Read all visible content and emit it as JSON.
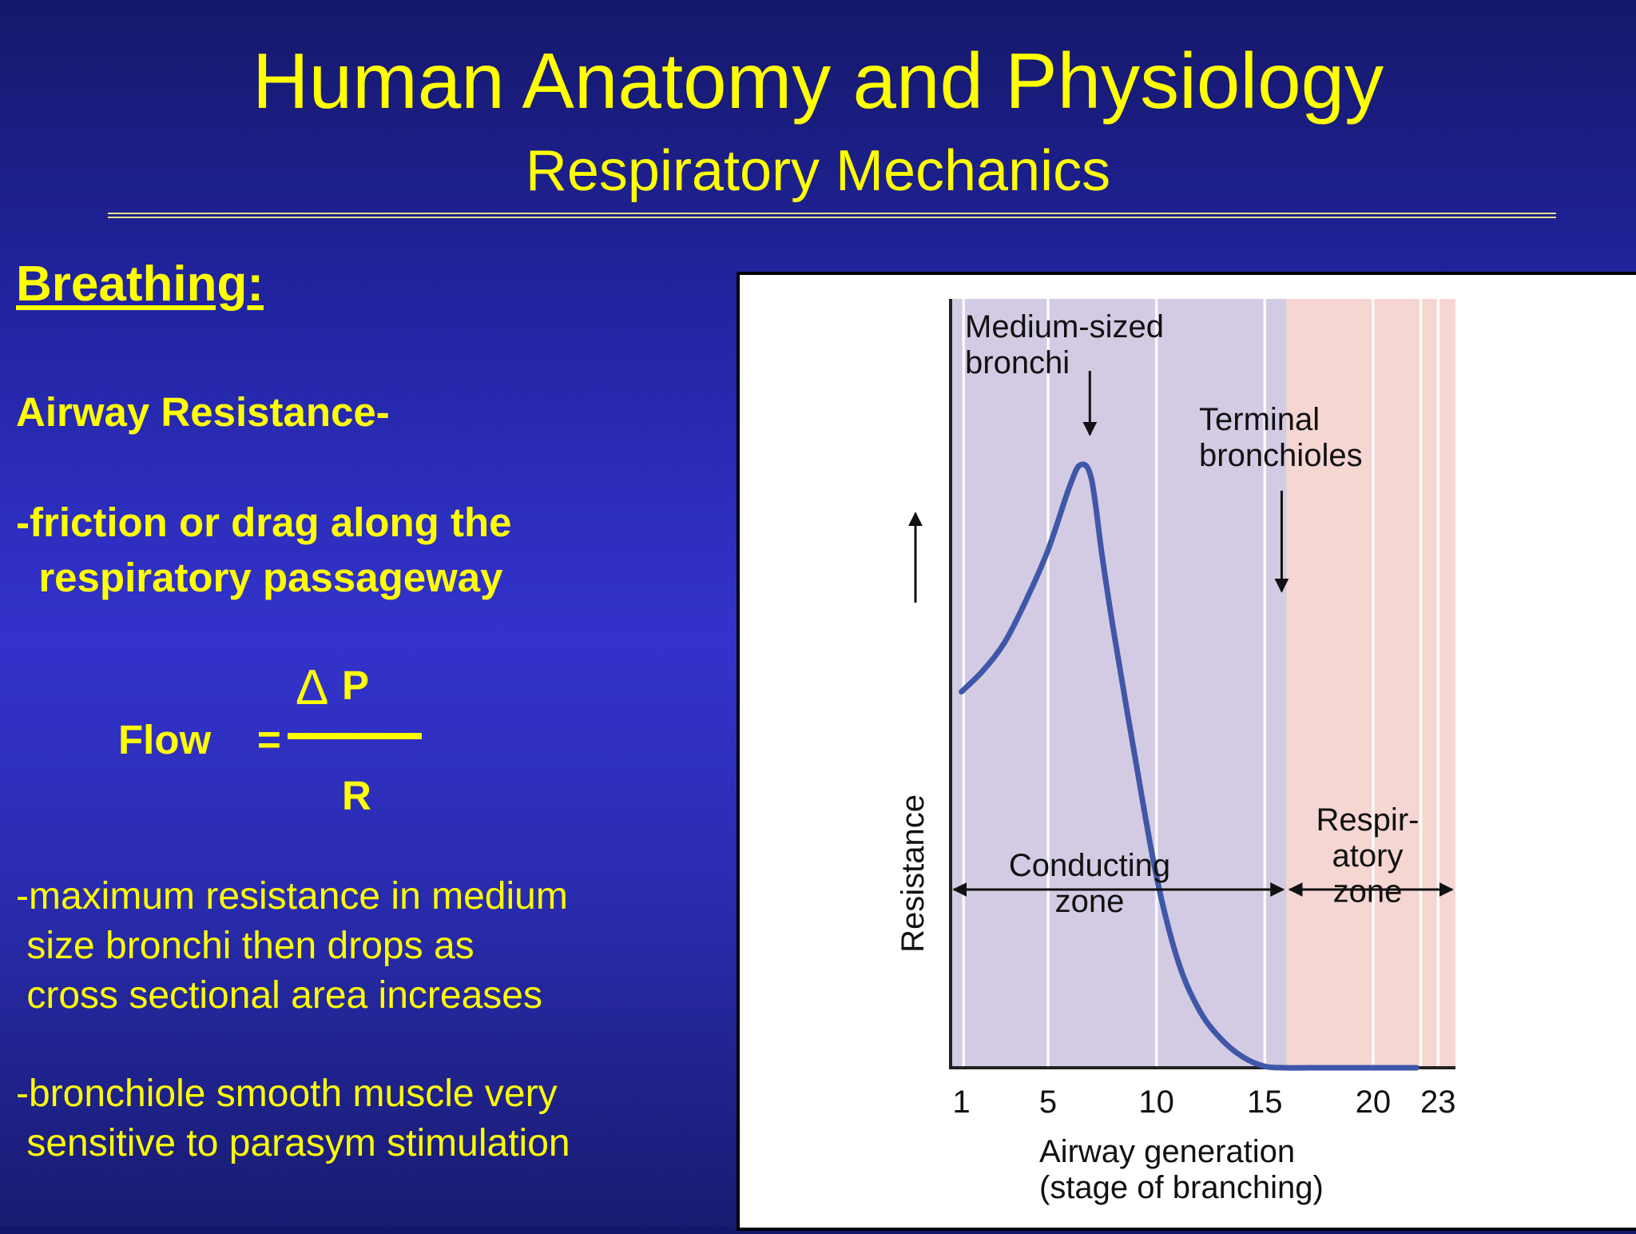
{
  "slide": {
    "title": "Human Anatomy and Physiology",
    "subtitle": "Respiratory Mechanics",
    "heading": "Breathing:",
    "topic": "Airway Resistance-",
    "definition": [
      "-friction or drag along the",
      "  respiratory passageway"
    ],
    "formula": {
      "lhs": "Flow",
      "equals": "=",
      "delta": "Δ",
      "numerator": "P",
      "denominator": "R"
    },
    "bullet_max_resistance": [
      "-maximum resistance in medium",
      " size bronchi then drops as",
      " cross sectional area increases"
    ],
    "bullet_bronchiole": [
      "-bronchiole smooth muscle very",
      " sensitive to parasym stimulation"
    ],
    "colors": {
      "background_top": "#15186a",
      "background_mid": "#3333cc",
      "text": "#ffff00",
      "conducting_zone": "#d3cbe3",
      "respiratory_zone": "#f5d6d3",
      "curve": "#3f57a8"
    }
  },
  "chart_data": {
    "type": "line",
    "xlabel": "Airway generation\n(stage of branching)",
    "ylabel": "Resistance",
    "xlim": [
      0.5,
      23.8
    ],
    "x_ticks": [
      1,
      5,
      10,
      15,
      20,
      23
    ],
    "y_ticks": [],
    "grid": true,
    "series": [
      {
        "name": "",
        "x": [
          1,
          2,
          3,
          4,
          5,
          6,
          6.5,
          7,
          7.5,
          8,
          9,
          10,
          11,
          12,
          13,
          14,
          15,
          16,
          17,
          18,
          19,
          20,
          21,
          22
        ],
        "y": [
          0.53,
          0.56,
          0.6,
          0.66,
          0.73,
          0.82,
          0.85,
          0.83,
          0.72,
          0.62,
          0.44,
          0.27,
          0.15,
          0.08,
          0.04,
          0.015,
          0.002,
          0,
          0,
          0,
          0,
          0,
          0,
          0
        ]
      }
    ],
    "ylim": [
      0,
      1.05
    ],
    "zones": [
      {
        "label": "Conducting\nzone",
        "x_start": 1,
        "x_end": 16
      },
      {
        "label": "Respir-\natory\nzone",
        "x_start": 16,
        "x_end": 23
      }
    ],
    "annotations": [
      {
        "label": "Medium-sized\nbronchi",
        "x": 7
      },
      {
        "label": "Terminal\nbronchioles",
        "x": 16
      }
    ]
  }
}
